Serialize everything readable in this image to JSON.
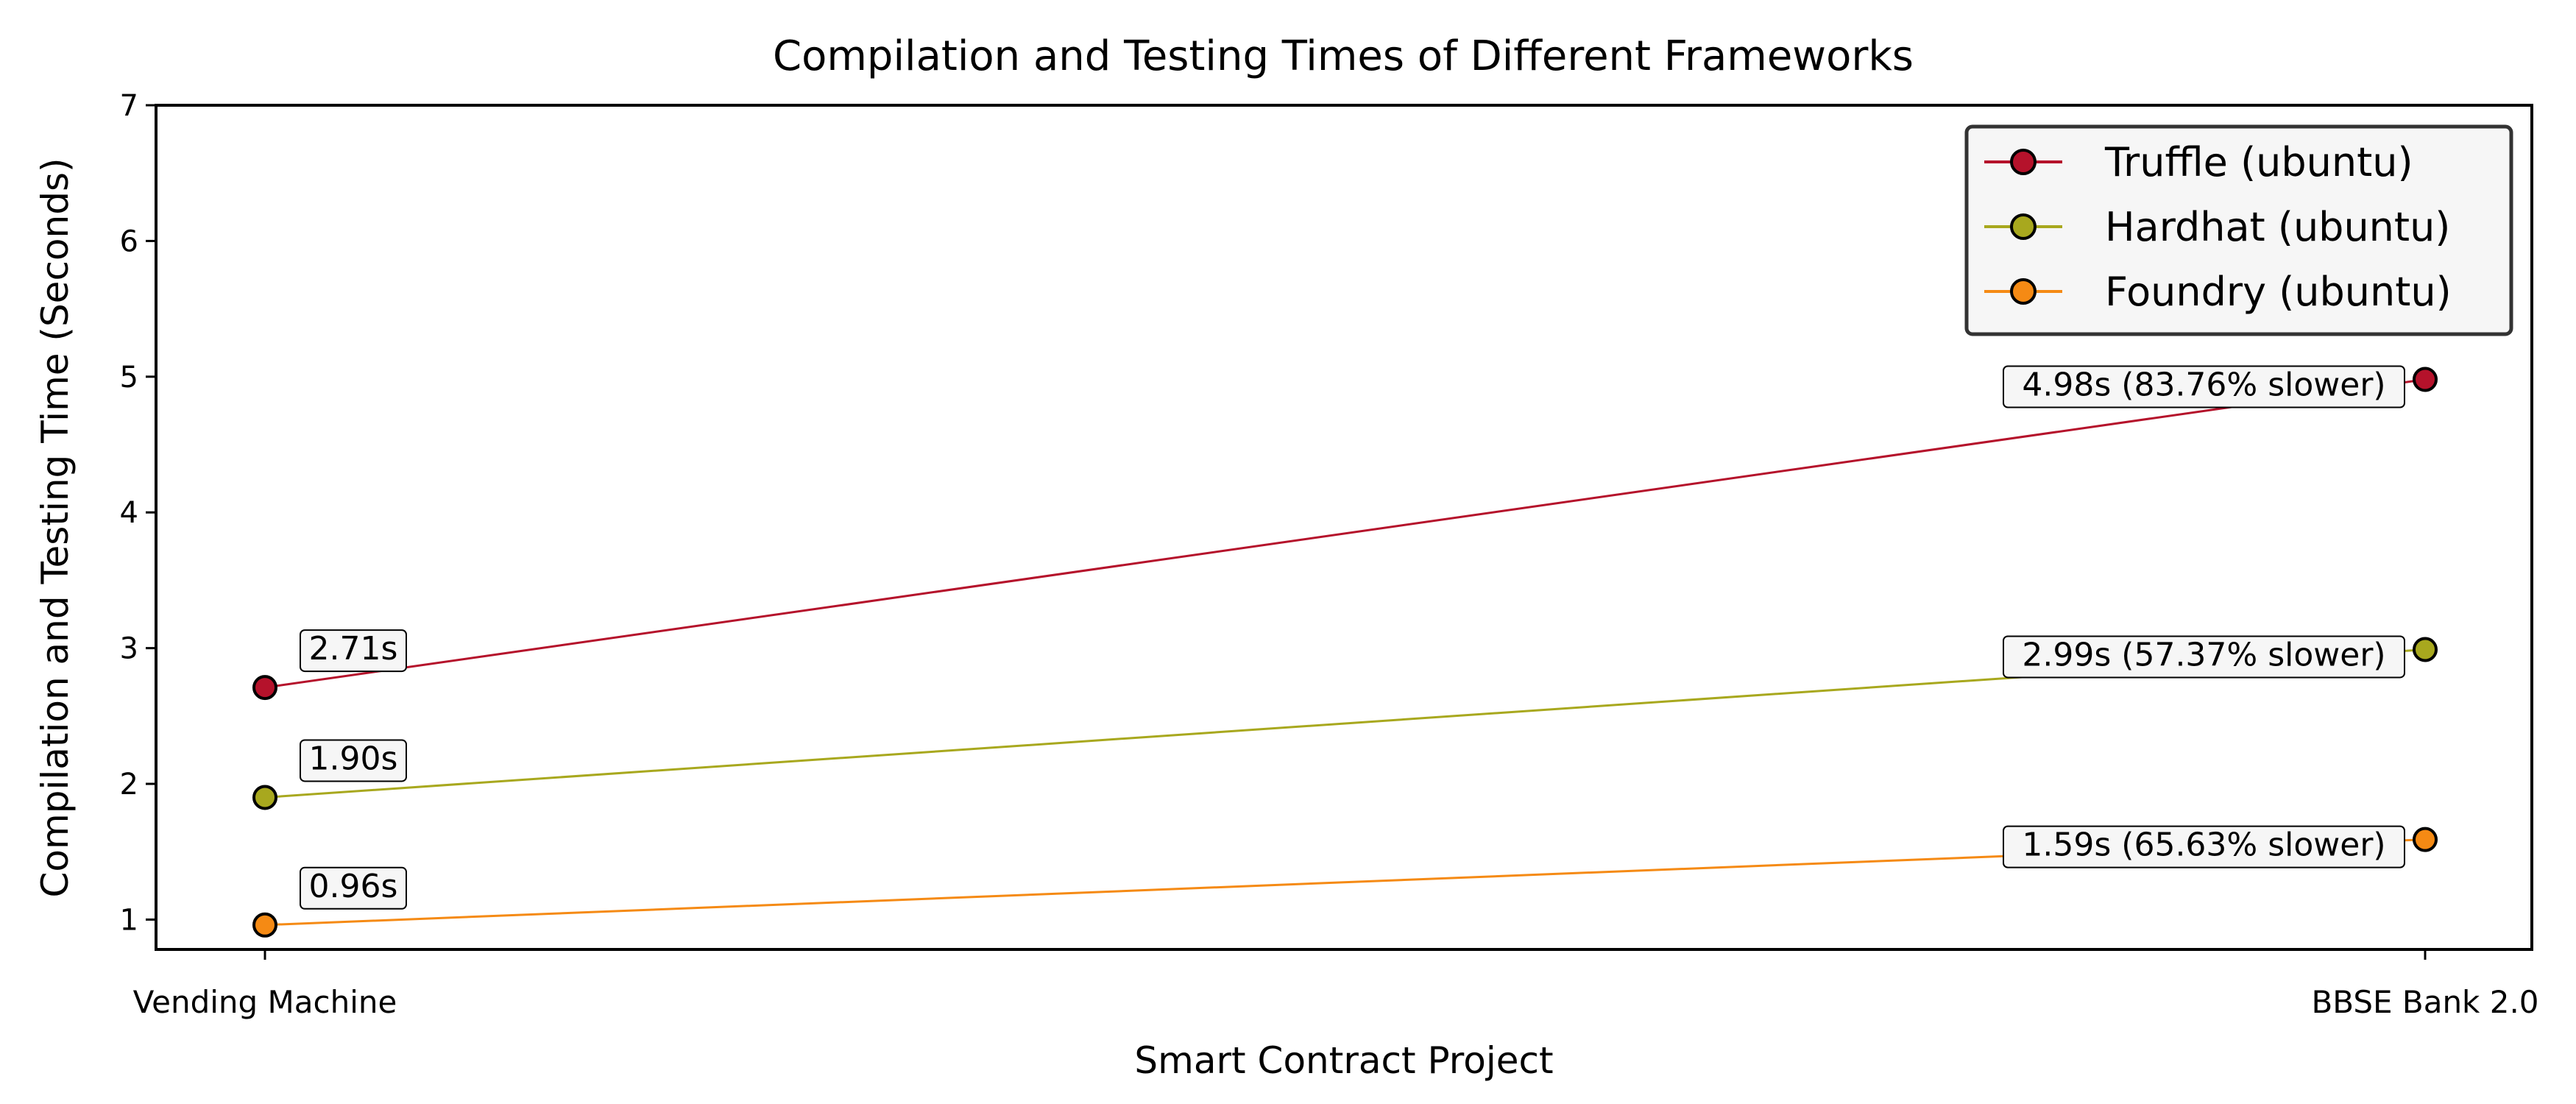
{
  "chart_data": {
    "type": "line",
    "title": "Compilation and Testing Times of Different Frameworks",
    "xlabel": "Smart Contract Project",
    "ylabel": "Compilation and Testing Time (Seconds)",
    "categories": [
      "Vending Machine",
      "BBSE Bank 2.0"
    ],
    "ylim": [
      0.78,
      7
    ],
    "yticks": [
      "1",
      "2",
      "3",
      "4",
      "5",
      "6",
      "7"
    ],
    "grid": false,
    "legend_position": "top-right",
    "series": [
      {
        "name": "Truffle (ubuntu)",
        "color": "#b5122b",
        "values": [
          2.71,
          4.98
        ],
        "labels": [
          "2.71s",
          "4.98s (83.76% slower)"
        ]
      },
      {
        "name": "Hardhat (ubuntu)",
        "color": "#a8a81e",
        "values": [
          1.9,
          2.99
        ],
        "labels": [
          "1.90s",
          "2.99s (57.37% slower)"
        ]
      },
      {
        "name": "Foundry (ubuntu)",
        "color": "#f58a14",
        "values": [
          0.96,
          1.59
        ],
        "labels": [
          "0.96s",
          "1.59s (65.63% slower)"
        ]
      }
    ]
  }
}
